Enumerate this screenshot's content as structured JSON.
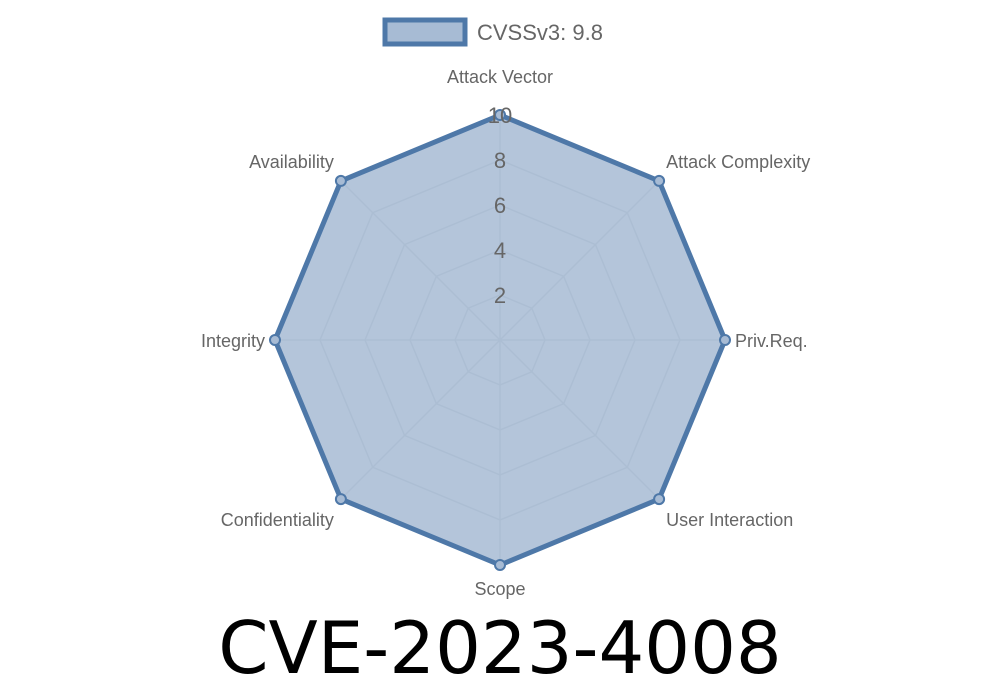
{
  "chart_data": {
    "type": "radar",
    "axes": [
      "Attack Vector",
      "Attack Complexity",
      "Priv.Req.",
      "User Interaction",
      "Scope",
      "Confidentiality",
      "Integrity",
      "Availability"
    ],
    "series": [
      {
        "name": "CVSSv3: 9.8",
        "values": [
          10,
          10,
          10,
          10,
          10,
          10,
          10,
          10
        ]
      }
    ],
    "rlim": [
      0,
      10
    ],
    "ticks": [
      "2",
      "4",
      "6",
      "8",
      "10"
    ],
    "legend": "top",
    "grid": true,
    "colors": {
      "stroke": "#4e78a8",
      "fill": "#a7bbd4",
      "grid": "#c8ccd2",
      "text": "#666666"
    }
  },
  "title": "CVE-2023-4008"
}
